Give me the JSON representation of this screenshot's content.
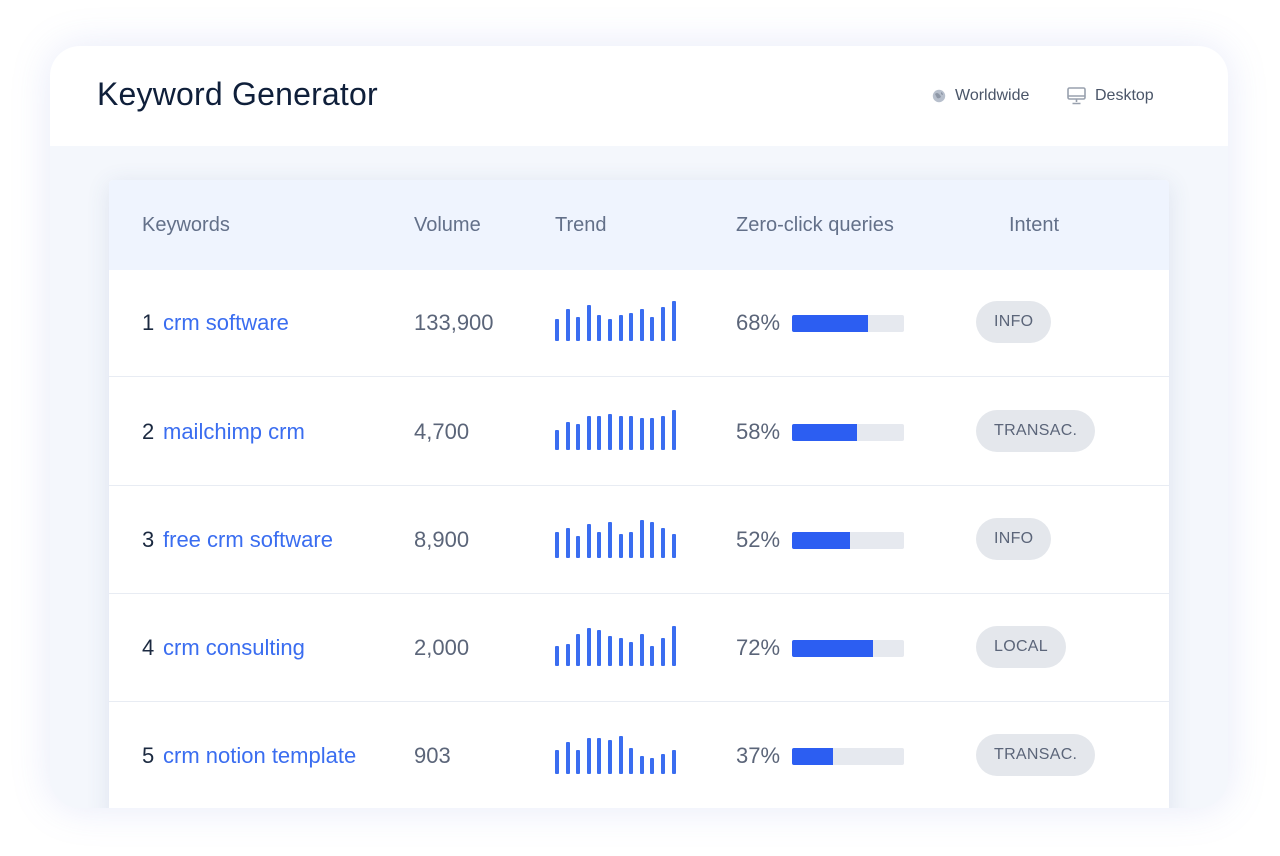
{
  "header": {
    "title": "Keyword Generator",
    "location_label": "Worldwide",
    "device_label": "Desktop"
  },
  "table": {
    "columns": [
      "Keywords",
      "Volume",
      "Trend",
      "Zero-click queries",
      "Intent"
    ],
    "rows": [
      {
        "rank": "1",
        "keyword": "crm software",
        "volume": "133,900",
        "trend": [
          0.55,
          0.8,
          0.6,
          0.9,
          0.65,
          0.55,
          0.65,
          0.7,
          0.8,
          0.6,
          0.85,
          1.0
        ],
        "zero_click": "68%",
        "zero_click_value": 0.68,
        "intent": "INFO"
      },
      {
        "rank": "2",
        "keyword": "mailchimp crm",
        "volume": "4,700",
        "trend": [
          0.5,
          0.7,
          0.65,
          0.85,
          0.85,
          0.9,
          0.85,
          0.85,
          0.8,
          0.8,
          0.85,
          1.0
        ],
        "zero_click": "58%",
        "zero_click_value": 0.58,
        "intent": "TRANSAC."
      },
      {
        "rank": "3",
        "keyword": "free crm software",
        "volume": "8,900",
        "trend": [
          0.65,
          0.75,
          0.55,
          0.85,
          0.65,
          0.9,
          0.6,
          0.65,
          0.95,
          0.9,
          0.75,
          0.6
        ],
        "zero_click": "52%",
        "zero_click_value": 0.52,
        "intent": "INFO"
      },
      {
        "rank": "4",
        "keyword": "crm consulting",
        "volume": "2,000",
        "trend": [
          0.5,
          0.55,
          0.8,
          0.95,
          0.9,
          0.75,
          0.7,
          0.6,
          0.8,
          0.5,
          0.7,
          1.0
        ],
        "zero_click": "72%",
        "zero_click_value": 0.72,
        "intent": "LOCAL"
      },
      {
        "rank": "5",
        "keyword": "crm notion template",
        "volume": "903",
        "trend": [
          0.6,
          0.8,
          0.6,
          0.9,
          0.9,
          0.85,
          0.95,
          0.65,
          0.45,
          0.4,
          0.5,
          0.6
        ],
        "zero_click": "37%",
        "zero_click_value": 0.37,
        "intent": "TRANSAC."
      }
    ]
  },
  "colors": {
    "accent": "#3a6df0",
    "bar_fill": "#2c5ef2",
    "badge_bg": "#e4e7ec"
  }
}
